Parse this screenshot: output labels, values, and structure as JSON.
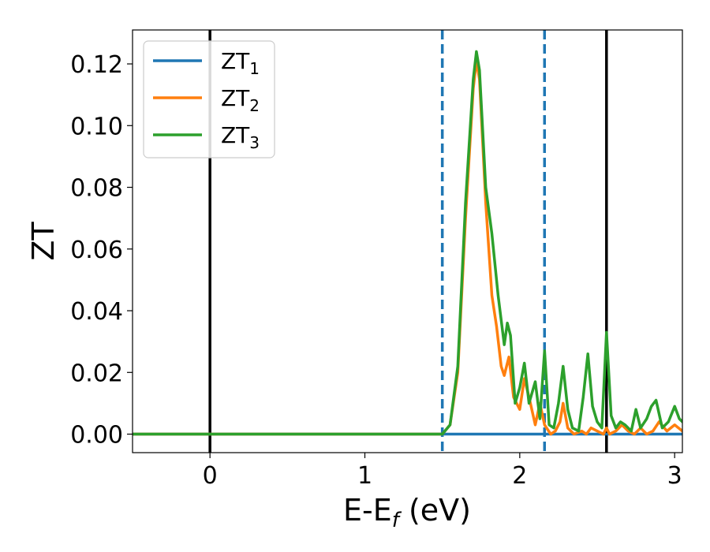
{
  "chart_data": {
    "type": "line",
    "title": "",
    "xlabel": {
      "main": "E-E",
      "sub": "f",
      "suffix": " (eV)"
    },
    "ylabel": "ZT",
    "xlim": [
      -0.5,
      3.05
    ],
    "ylim": [
      -0.006,
      0.131
    ],
    "xticks": [
      0,
      1,
      2,
      3
    ],
    "xtick_labels": [
      "0",
      "1",
      "2",
      "3"
    ],
    "yticks": [
      0.0,
      0.02,
      0.04,
      0.06,
      0.08,
      0.1,
      0.12
    ],
    "ytick_labels": [
      "0.00",
      "0.02",
      "0.04",
      "0.06",
      "0.08",
      "0.10",
      "0.12"
    ],
    "grid": false,
    "legend_position": "top-left",
    "vertical_lines": [
      {
        "x": 0.0,
        "style": "solid",
        "color": "#000000"
      },
      {
        "x": 2.56,
        "style": "solid",
        "color": "#000000"
      },
      {
        "x": 1.5,
        "style": "dashed",
        "color": "#1f77b4"
      },
      {
        "x": 2.16,
        "style": "dashed",
        "color": "#1f77b4"
      }
    ],
    "series": [
      {
        "name": "ZT",
        "sub": "1",
        "color": "#1f77b4",
        "x": [
          -0.5,
          3.05
        ],
        "y": [
          0.0,
          0.0
        ]
      },
      {
        "name": "ZT",
        "sub": "2",
        "color": "#ff7f0e",
        "x": [
          -0.5,
          1.45,
          1.5,
          1.55,
          1.6,
          1.65,
          1.7,
          1.72,
          1.74,
          1.78,
          1.82,
          1.85,
          1.88,
          1.9,
          1.93,
          1.96,
          2.0,
          2.03,
          2.06,
          2.1,
          2.13,
          2.16,
          2.2,
          2.23,
          2.26,
          2.28,
          2.31,
          2.35,
          2.4,
          2.43,
          2.46,
          2.5,
          2.54,
          2.56,
          2.58,
          2.62,
          2.66,
          2.7,
          2.74,
          2.78,
          2.82,
          2.86,
          2.9,
          2.95,
          3.0,
          3.05
        ],
        "y": [
          0.0,
          0.0,
          0.0,
          0.003,
          0.02,
          0.07,
          0.112,
          0.121,
          0.115,
          0.075,
          0.045,
          0.035,
          0.022,
          0.019,
          0.025,
          0.012,
          0.008,
          0.018,
          0.012,
          0.003,
          0.01,
          0.003,
          0.0,
          0.001,
          0.004,
          0.01,
          0.002,
          0.0,
          0.001,
          0.0,
          0.002,
          0.001,
          0.0,
          0.002,
          0.0,
          0.001,
          0.003,
          0.001,
          0.0,
          0.002,
          0.0,
          0.001,
          0.004,
          0.001,
          0.003,
          0.001
        ]
      },
      {
        "name": "ZT",
        "sub": "3",
        "color": "#2ca02c",
        "x": [
          -0.5,
          1.45,
          1.5,
          1.55,
          1.6,
          1.65,
          1.7,
          1.72,
          1.74,
          1.78,
          1.82,
          1.86,
          1.9,
          1.92,
          1.94,
          1.97,
          2.0,
          2.03,
          2.06,
          2.1,
          2.13,
          2.16,
          2.19,
          2.22,
          2.25,
          2.28,
          2.31,
          2.34,
          2.38,
          2.41,
          2.44,
          2.47,
          2.5,
          2.53,
          2.56,
          2.59,
          2.62,
          2.65,
          2.68,
          2.72,
          2.75,
          2.78,
          2.82,
          2.85,
          2.88,
          2.92,
          2.96,
          3.0,
          3.03,
          3.05
        ],
        "y": [
          0.0,
          0.0,
          0.0,
          0.003,
          0.022,
          0.075,
          0.115,
          0.124,
          0.118,
          0.08,
          0.065,
          0.045,
          0.029,
          0.036,
          0.032,
          0.01,
          0.015,
          0.023,
          0.01,
          0.017,
          0.005,
          0.027,
          0.003,
          0.002,
          0.01,
          0.022,
          0.008,
          0.002,
          0.001,
          0.012,
          0.026,
          0.009,
          0.004,
          0.002,
          0.033,
          0.006,
          0.002,
          0.004,
          0.003,
          0.001,
          0.008,
          0.002,
          0.005,
          0.009,
          0.011,
          0.002,
          0.004,
          0.009,
          0.005,
          0.004
        ]
      }
    ]
  }
}
